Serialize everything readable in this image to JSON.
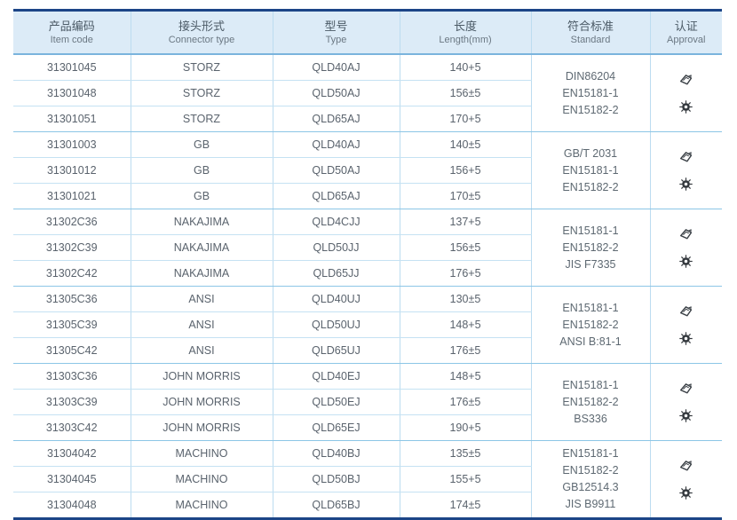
{
  "table": {
    "headers": [
      {
        "zh": "产品编码",
        "en": "Item code"
      },
      {
        "zh": "接头形式",
        "en": "Connector type"
      },
      {
        "zh": "型号",
        "en": "Type"
      },
      {
        "zh": "长度",
        "en": "Length(mm)"
      },
      {
        "zh": "符合标准",
        "en": "Standard"
      },
      {
        "zh": "认证",
        "en": "Approval"
      }
    ],
    "groups": [
      {
        "rows": [
          {
            "item_code": "31301045",
            "connector_type": "STORZ",
            "type": "QLD40AJ",
            "length": "140+5"
          },
          {
            "item_code": "31301048",
            "connector_type": "STORZ",
            "type": "QLD50AJ",
            "length": "156±5"
          },
          {
            "item_code": "31301051",
            "connector_type": "STORZ",
            "type": "QLD65AJ",
            "length": "170+5"
          }
        ],
        "standards": [
          "DIN86204",
          "EN15181-1",
          "EN15182-2"
        ],
        "approval_icons": [
          "certificate-icon",
          "seal-icon"
        ]
      },
      {
        "rows": [
          {
            "item_code": "31301003",
            "connector_type": "GB",
            "type": "QLD40AJ",
            "length": "140±5"
          },
          {
            "item_code": "31301012",
            "connector_type": "GB",
            "type": "QLD50AJ",
            "length": "156+5"
          },
          {
            "item_code": "31301021",
            "connector_type": "GB",
            "type": "QLD65AJ",
            "length": "170±5"
          }
        ],
        "standards": [
          "GB/T 2031",
          "EN15181-1",
          "EN15182-2"
        ],
        "approval_icons": [
          "certificate-icon",
          "seal-icon"
        ]
      },
      {
        "rows": [
          {
            "item_code": "31302C36",
            "connector_type": "NAKAJIMA",
            "type": "QLD4CJJ",
            "length": "137+5"
          },
          {
            "item_code": "31302C39",
            "connector_type": "NAKAJIMA",
            "type": "QLD50JJ",
            "length": "156±5"
          },
          {
            "item_code": "31302C42",
            "connector_type": "NAKAJIMA",
            "type": "QLD65JJ",
            "length": "176+5"
          }
        ],
        "standards": [
          "EN15181-1",
          "EN15182-2",
          "JIS F7335"
        ],
        "approval_icons": [
          "certificate-icon",
          "seal-icon"
        ]
      },
      {
        "rows": [
          {
            "item_code": "31305C36",
            "connector_type": "ANSI",
            "type": "QLD40UJ",
            "length": "130±5"
          },
          {
            "item_code": "31305C39",
            "connector_type": "ANSI",
            "type": "QLD50UJ",
            "length": "148+5"
          },
          {
            "item_code": "31305C42",
            "connector_type": "ANSI",
            "type": "QLD65UJ",
            "length": "176±5"
          }
        ],
        "standards": [
          "EN15181-1",
          "EN15182-2",
          "ANSI B:81-1"
        ],
        "approval_icons": [
          "certificate-icon",
          "seal-icon"
        ]
      },
      {
        "rows": [
          {
            "item_code": "31303C36",
            "connector_type": "JOHN MORRIS",
            "type": "QLD40EJ",
            "length": "148+5"
          },
          {
            "item_code": "31303C39",
            "connector_type": "JOHN MORRIS",
            "type": "QLD50EJ",
            "length": "176±5"
          },
          {
            "item_code": "31303C42",
            "connector_type": "JOHN MORRIS",
            "type": "QLD65EJ",
            "length": "190+5"
          }
        ],
        "standards": [
          "EN15181-1",
          "EN15182-2",
          "BS336"
        ],
        "approval_icons": [
          "certificate-icon",
          "seal-icon"
        ]
      },
      {
        "rows": [
          {
            "item_code": "31304042",
            "connector_type": "MACHINO",
            "type": "QLD40BJ",
            "length": "135±5"
          },
          {
            "item_code": "31304045",
            "connector_type": "MACHINO",
            "type": "QLD50BJ",
            "length": "155+5"
          },
          {
            "item_code": "31304048",
            "connector_type": "MACHINO",
            "type": "QLD65BJ",
            "length": "174±5"
          }
        ],
        "standards": [
          "EN15181-1",
          "EN15182-2",
          "GB12514.3",
          "JIS B9911"
        ],
        "approval_icons": [
          "certificate-icon",
          "seal-icon"
        ]
      }
    ],
    "colors": {
      "border_navy": "#1c4587",
      "header_bg": "#dcebf7",
      "grid_light": "#c5e2f3",
      "grid_group": "#8cc6e6",
      "text": "#5a636d"
    }
  }
}
